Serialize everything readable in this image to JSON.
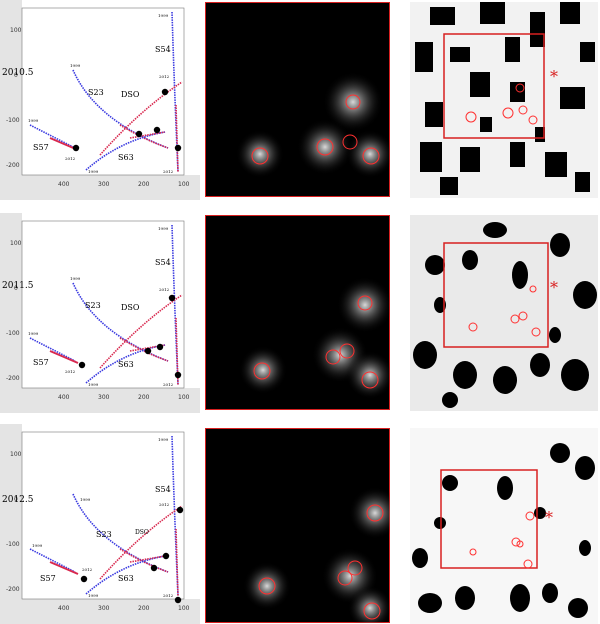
{
  "rows": [
    {
      "epoch": "2010.5",
      "star_labels": [
        "S23",
        "DSO",
        "S54",
        "S57",
        "S63"
      ],
      "y_ticks": [
        "100",
        "0",
        "-100",
        "-200"
      ],
      "x_ticks": [
        "400",
        "300",
        "200",
        "100"
      ],
      "year_tags": [
        "1999",
        "2012",
        "1999",
        "2012",
        "1999",
        "2012",
        "1999"
      ]
    },
    {
      "epoch": "2011.5",
      "star_labels": [
        "S23",
        "DSO",
        "S54",
        "S57",
        "S63"
      ],
      "y_ticks": [
        "100",
        "0",
        "-100",
        "-200"
      ],
      "x_ticks": [
        "400",
        "300",
        "200",
        "100"
      ],
      "year_tags": [
        "1999",
        "2012",
        "1999",
        "2012",
        "1999",
        "2012",
        "1999"
      ]
    },
    {
      "epoch": "2012.5",
      "star_labels": [
        "S23",
        "DSO",
        "S54",
        "S57",
        "S63"
      ],
      "y_ticks": [
        "100",
        "0",
        "-100",
        "-200"
      ],
      "x_ticks": [
        "400",
        "300",
        "200",
        "100"
      ],
      "year_tags": [
        "1999",
        "2012",
        "1999",
        "2012",
        "1999",
        "2012",
        "1999"
      ]
    }
  ],
  "colors": {
    "early_track": "#3a3ae0",
    "late_track": "#d8284e",
    "frame_red": "#d82020",
    "circle": "#ff3030"
  }
}
